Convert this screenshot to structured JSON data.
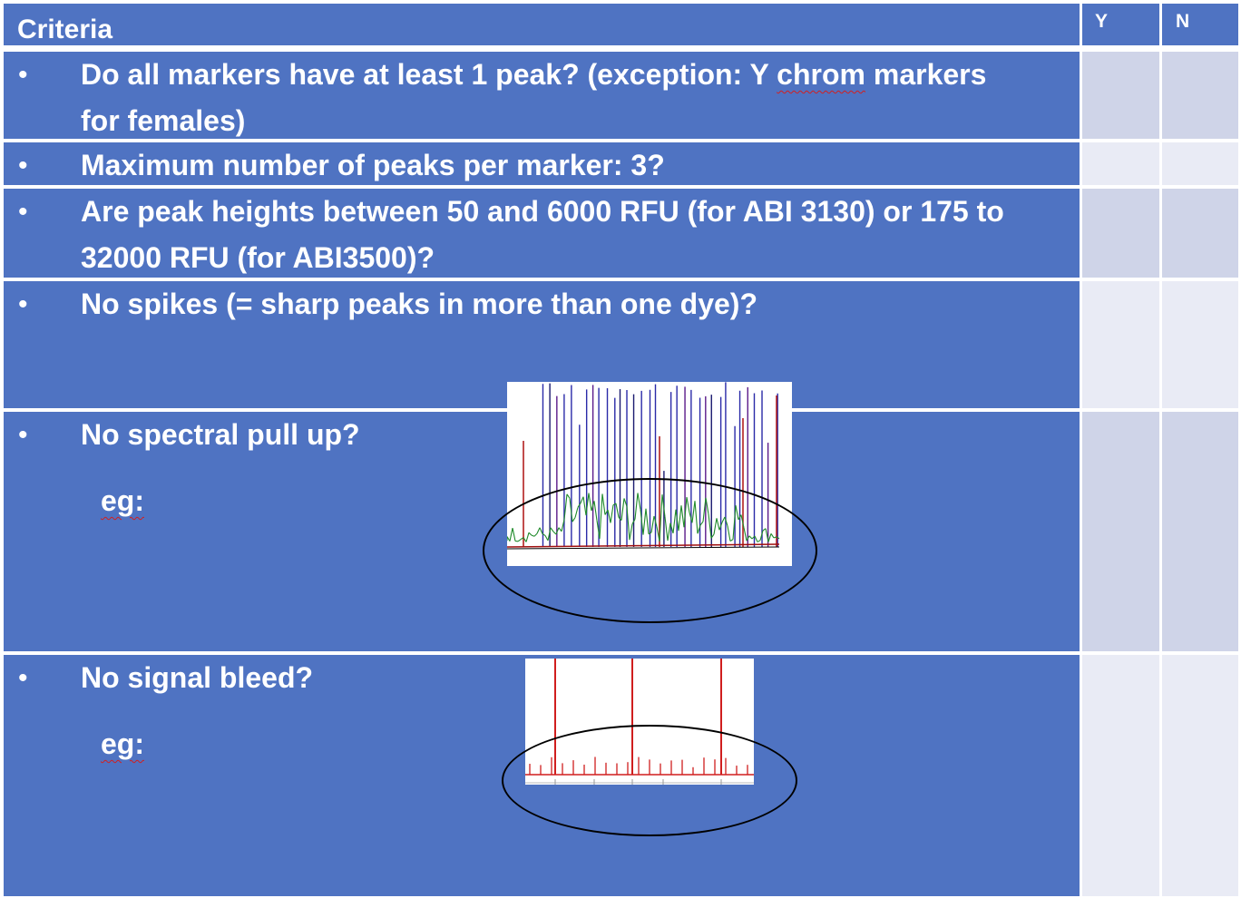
{
  "header": {
    "criteria": "Criteria",
    "y": "Y",
    "n": "N"
  },
  "bullet": "•",
  "rows": [
    {
      "text_pre": "Do all markers have at least 1 peak? (exception: Y ",
      "text_wavy": "chrom",
      "text_post": " markers for females)"
    },
    {
      "text": "Maximum number of peaks per marker: 3?"
    },
    {
      "text": "Are peak heights between 50 and 6000 RFU (for ABI 3130) or 175 to 32000 RFU (for ABI3500)?"
    },
    {
      "text": "No spikes (= sharp peaks in more than one dye)?"
    },
    {
      "text": "No spectral pull up?",
      "eg": "eg:"
    },
    {
      "text": "No signal bleed?",
      "eg": "eg:"
    }
  ],
  "colors": {
    "row_blue": "#4f73c2",
    "yn_col_1": "#cfd4e8",
    "yn_col_2": "#e9ebf5"
  }
}
